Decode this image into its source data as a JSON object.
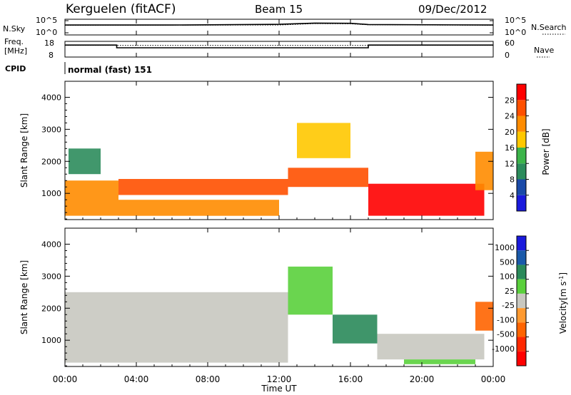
{
  "header": {
    "station": "Kerguelen (fitACF)",
    "beam": "Beam 15",
    "date": "09/Dec/2012"
  },
  "panels": {
    "noise": {
      "left_label": "N.Sky",
      "right_label": "N.Search",
      "left_ticks": [
        "10^5",
        "10^0"
      ],
      "right_ticks": [
        "10^5",
        "10^0"
      ]
    },
    "freq": {
      "left_label_1": "Freq.",
      "left_label_2": "[MHz]",
      "right_label": "Nave",
      "left_ticks": [
        "18",
        "8"
      ],
      "right_ticks": [
        "60",
        "0"
      ]
    },
    "cpid": {
      "label": "CPID",
      "value": "normal (fast) 151"
    }
  },
  "axes": {
    "ylabel": "Slant Range [km]",
    "xlabel": "Time UT",
    "y_ticks": [
      "1000",
      "2000",
      "3000",
      "4000"
    ],
    "x_ticks": [
      "00:00",
      "04:00",
      "08:00",
      "12:00",
      "16:00",
      "20:00",
      "00:00"
    ]
  },
  "colorbars": {
    "power": {
      "label": "Power [dB]",
      "ticks": [
        "4",
        "8",
        "12",
        "16",
        "20",
        "24",
        "28"
      ],
      "colors": [
        "#1a1adc",
        "#1a4aa8",
        "#2c8c5c",
        "#3cb44a",
        "#ffc800",
        "#ff8c00",
        "#ff5000",
        "#ff0000"
      ]
    },
    "velocity": {
      "label_main": "Velocity",
      "label_unit": "[m s",
      "label_sup": "-1",
      "label_close": "]",
      "ticks": [
        "1000",
        "500",
        "100",
        "25",
        "-25",
        "-100",
        "-500",
        "-1000"
      ],
      "colors": [
        "#1a1adc",
        "#1a5aaa",
        "#2a8a5a",
        "#5ad03c",
        "#c8c8c0",
        "#ff9a30",
        "#ff6400",
        "#ff2800",
        "#ff0000"
      ]
    }
  },
  "chart_data": [
    {
      "type": "line",
      "name": "noise-panel",
      "x_range_hours": [
        0,
        24
      ],
      "ylim_log10": [
        0,
        5
      ],
      "series": [
        {
          "name": "N.Sky",
          "x": [
            0,
            6,
            12,
            14,
            16,
            17,
            24
          ],
          "y_log10": [
            3.2,
            3.2,
            3.5,
            4.0,
            3.9,
            3.4,
            3.2
          ]
        },
        {
          "name": "N.Search",
          "x": [
            0,
            12,
            14,
            16,
            17,
            24
          ],
          "y_log10": [
            3.1,
            3.2,
            3.8,
            3.7,
            3.3,
            3.1
          ]
        }
      ]
    },
    {
      "type": "line",
      "name": "frequency-panel",
      "x_range_hours": [
        0,
        24
      ],
      "ylim": [
        8,
        18
      ],
      "series": [
        {
          "name": "Freq",
          "x": [
            0,
            2.9,
            2.9,
            17.0,
            17.0,
            24
          ],
          "y": [
            16.2,
            16.2,
            14.1,
            14.1,
            16.2,
            16.2
          ]
        },
        {
          "name": "Nave",
          "x": [
            0,
            24
          ],
          "y": [
            16.0,
            16.0
          ]
        }
      ]
    },
    {
      "type": "heatmap",
      "name": "power",
      "x_range_hours": [
        0,
        24
      ],
      "ylim_km": [
        180,
        4500
      ],
      "unit": "dB",
      "regions": [
        {
          "x": [
            0.0,
            3.0
          ],
          "y": [
            300,
            1400
          ],
          "value": 22
        },
        {
          "x": [
            0.2,
            2.0
          ],
          "y": [
            1600,
            2400
          ],
          "value": 10
        },
        {
          "x": [
            3.0,
            12.5
          ],
          "y": [
            950,
            1450
          ],
          "value": 24
        },
        {
          "x": [
            3.0,
            12.0
          ],
          "y": [
            300,
            800
          ],
          "value": 20
        },
        {
          "x": [
            12.5,
            17.0
          ],
          "y": [
            1200,
            1800
          ],
          "value": 26
        },
        {
          "x": [
            13.0,
            16.0
          ],
          "y": [
            2100,
            3200
          ],
          "value": 16
        },
        {
          "x": [
            17.0,
            23.5
          ],
          "y": [
            300,
            1300
          ],
          "value": 28
        },
        {
          "x": [
            23.0,
            24.0
          ],
          "y": [
            1100,
            2300
          ],
          "value": 20
        }
      ]
    },
    {
      "type": "heatmap",
      "name": "velocity",
      "x_range_hours": [
        0,
        24
      ],
      "ylim_km": [
        180,
        4500
      ],
      "unit": "m s-1",
      "regions": [
        {
          "x": [
            0.0,
            12.5
          ],
          "y": [
            300,
            2500
          ],
          "value": 0
        },
        {
          "x": [
            12.5,
            15.0
          ],
          "y": [
            1800,
            3300
          ],
          "value": 80
        },
        {
          "x": [
            15.0,
            17.5
          ],
          "y": [
            900,
            1800
          ],
          "value": 400
        },
        {
          "x": [
            17.5,
            23.5
          ],
          "y": [
            400,
            1200
          ],
          "value": 0
        },
        {
          "x": [
            19.0,
            23.0
          ],
          "y": [
            250,
            400
          ],
          "value": 60
        },
        {
          "x": [
            23.0,
            24.0
          ],
          "y": [
            1300,
            2200
          ],
          "value": -300
        }
      ]
    }
  ]
}
